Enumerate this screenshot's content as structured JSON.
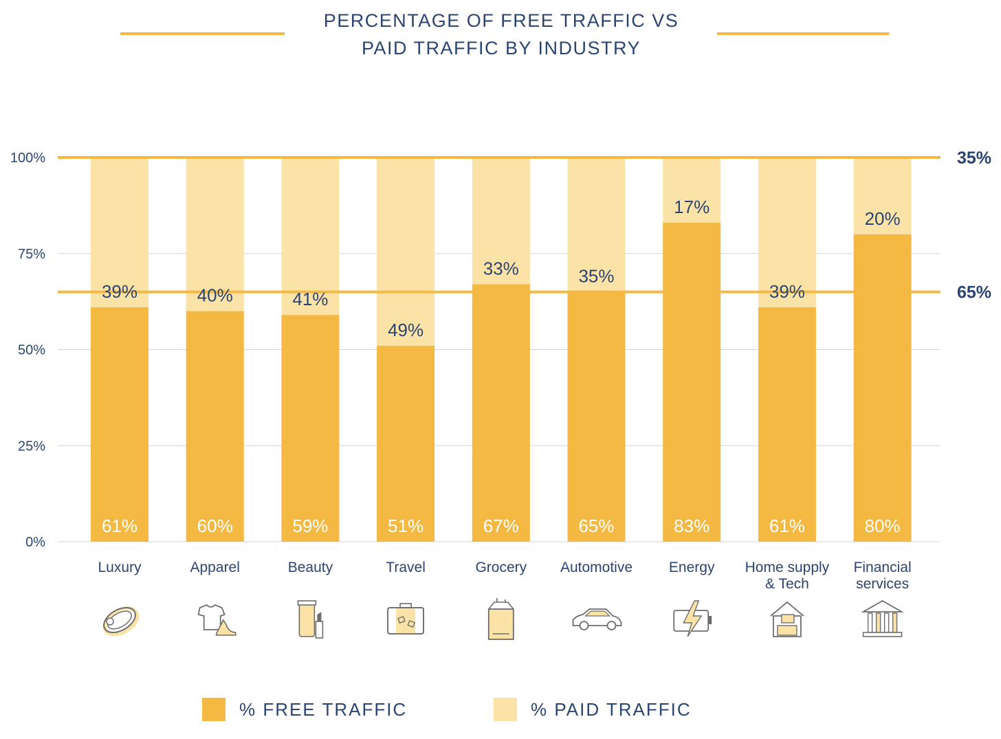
{
  "title": {
    "line1": "PERCENTAGE OF FREE TRAFFIC VS",
    "line2": "PAID TRAFFIC BY INDUSTRY"
  },
  "colors": {
    "free": "#f3b943",
    "paid": "#fbe3a8",
    "accent": "#f3b943",
    "text": "#2b4472",
    "grid": "#d4d4d4"
  },
  "icons": [
    "ring-icon",
    "clothing-icon",
    "cosmetics-icon",
    "suitcase-icon",
    "grocery-bag-icon",
    "car-icon",
    "battery-icon",
    "home-office-icon",
    "bank-building-icon"
  ],
  "chart_data": {
    "type": "bar",
    "stacked": true,
    "categories": [
      "Luxury",
      "Apparel",
      "Beauty",
      "Travel",
      "Grocery",
      "Automotive",
      "Energy",
      "Home supply & Tech",
      "Financial services"
    ],
    "category_lines": [
      [
        "Luxury"
      ],
      [
        "Apparel"
      ],
      [
        "Beauty"
      ],
      [
        "Travel"
      ],
      [
        "Grocery"
      ],
      [
        "Automotive"
      ],
      [
        "Energy"
      ],
      [
        "Home supply",
        "& Tech"
      ],
      [
        "Financial",
        "services"
      ]
    ],
    "series": [
      {
        "name": "% FREE TRAFFIC",
        "values": [
          61,
          60,
          59,
          51,
          67,
          65,
          83,
          61,
          80
        ],
        "labels": [
          "61%",
          "60%",
          "59%",
          "51%",
          "67%",
          "65%",
          "83%",
          "61%",
          "80%"
        ]
      },
      {
        "name": "% PAID TRAFFIC",
        "values": [
          39,
          40,
          41,
          49,
          33,
          35,
          17,
          39,
          20
        ],
        "labels": [
          "39%",
          "40%",
          "41%",
          "49%",
          "33%",
          "35%",
          "17%",
          "39%",
          "20%"
        ]
      }
    ],
    "yticks": [
      0,
      25,
      50,
      75,
      100
    ],
    "ytick_labels": [
      "0%",
      "25%",
      "50%",
      "75%",
      "100%"
    ],
    "ylim": [
      0,
      100
    ],
    "reference_lines": [
      {
        "value": 100,
        "label": "35%"
      },
      {
        "value": 65,
        "label": "65%"
      }
    ],
    "grid": true,
    "legend_position": "bottom"
  }
}
